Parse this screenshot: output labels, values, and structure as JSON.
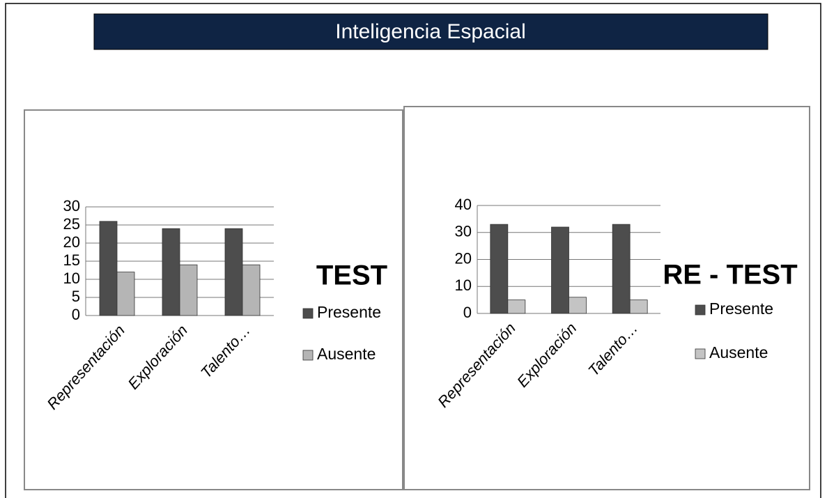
{
  "header": {
    "title": "Inteligencia Espacial"
  },
  "chart_data": [
    {
      "type": "bar",
      "title": "TEST",
      "categories": [
        "Representación",
        "Exploración",
        "Talento…"
      ],
      "series": [
        {
          "name": "Presente",
          "color": "#4d4d4d",
          "values": [
            26,
            24,
            24
          ]
        },
        {
          "name": "Ausente",
          "color": "#b5b5b5",
          "values": [
            12,
            14,
            14
          ]
        }
      ],
      "ylim": [
        0,
        30
      ],
      "yticks": [
        0,
        5,
        10,
        15,
        20,
        25,
        30
      ],
      "grid": true,
      "legend": "right"
    },
    {
      "type": "bar",
      "title": "RE - TEST",
      "categories": [
        "Representación",
        "Exploración",
        "Talento…"
      ],
      "series": [
        {
          "name": "Presente",
          "color": "#4d4d4d",
          "values": [
            33,
            32,
            33
          ]
        },
        {
          "name": "Ausente",
          "color": "#c4c4c4",
          "values": [
            5,
            6,
            5
          ]
        }
      ],
      "ylim": [
        0,
        40
      ],
      "yticks": [
        0,
        10,
        20,
        30,
        40
      ],
      "grid": true,
      "legend": "right"
    }
  ]
}
